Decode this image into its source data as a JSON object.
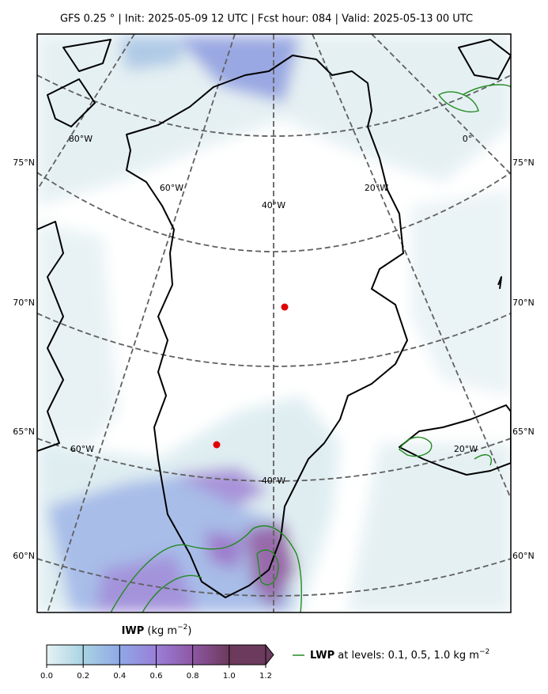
{
  "header": {
    "title": "GFS 0.25 °  |  Init: 2025-05-09 12 UTC  |  Fcst hour: 084  |  Valid: 2025-05-13 00 UTC"
  },
  "map": {
    "lat_labels_left": [
      "75°N",
      "70°N",
      "65°N",
      "60°N"
    ],
    "lat_labels_right": [
      "75°N",
      "70°N",
      "65°N",
      "60°N"
    ],
    "lon_labels": [
      "80°W",
      "60°W",
      "40°W",
      "20°W",
      "0°",
      "60°W",
      "40°W",
      "20°W"
    ]
  },
  "colorbar": {
    "name": "IWP",
    "units": "(kg m",
    "units_exponent": "−2",
    "units_close": ")",
    "lim": [
      0,
      1.2
    ],
    "ticks": [
      {
        "value": 0,
        "label": "0.0"
      },
      {
        "value": 0.2,
        "label": "0.2"
      },
      {
        "value": 0.4,
        "label": "0.4"
      },
      {
        "value": 0.6,
        "label": "0.6"
      },
      {
        "value": 0.8,
        "label": "0.8"
      },
      {
        "value": 1.0,
        "label": "1.0"
      },
      {
        "value": 1.2,
        "label": "1.2"
      }
    ],
    "colors": [
      "#e6f2f4",
      "#a9d3e3",
      "#8fa8e6",
      "#9a7fd8",
      "#8e57a3",
      "#6b3a5c"
    ]
  },
  "legend": {
    "name": "LWP",
    "text": " at levels: 0.1, 0.5, 1.0  kg m",
    "exponent": "−2",
    "color": "#228b22"
  }
}
